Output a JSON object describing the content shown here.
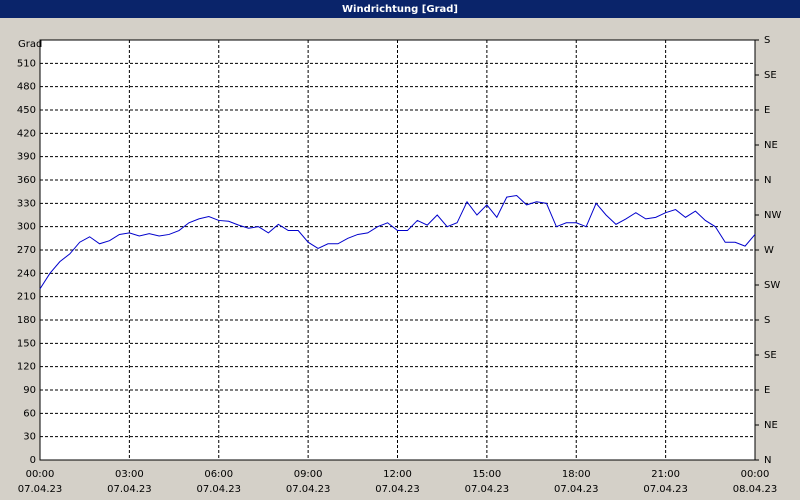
{
  "chart_data": {
    "type": "line",
    "title": "Windrichtung [Grad]",
    "y_label": "Grad",
    "x": [
      0,
      20,
      40,
      60,
      80,
      100,
      120,
      140,
      160,
      180,
      200,
      220,
      240,
      260,
      280,
      300,
      320,
      340,
      360,
      380,
      400,
      420,
      440,
      460,
      480,
      500,
      520,
      540,
      560,
      580,
      600,
      620,
      640,
      660,
      680,
      700,
      720,
      740,
      760,
      780,
      800,
      820,
      840,
      860,
      880,
      900,
      920,
      940,
      960,
      980,
      1000,
      1020,
      1040,
      1060,
      1080,
      1100,
      1120,
      1140,
      1160,
      1180,
      1200,
      1220,
      1240,
      1260,
      1280,
      1300,
      1320,
      1340,
      1360,
      1380,
      1400,
      1420,
      1440
    ],
    "series": [
      {
        "color": "#0000cc",
        "values": [
          220,
          240,
          255,
          265,
          280,
          287,
          278,
          282,
          290,
          292,
          288,
          291,
          288,
          290,
          295,
          305,
          310,
          313,
          308,
          307,
          302,
          298,
          300,
          292,
          303,
          295,
          295,
          280,
          272,
          278,
          278,
          285,
          290,
          292,
          300,
          305,
          295,
          295,
          308,
          302,
          315,
          300,
          305,
          332,
          315,
          328,
          312,
          338,
          340,
          328,
          332,
          330,
          300,
          305,
          305,
          300,
          330,
          315,
          303,
          310,
          318,
          310,
          312,
          318,
          322,
          312,
          320,
          308,
          300,
          280,
          280,
          275,
          290
        ]
      }
    ],
    "xlim": [
      0,
      1440
    ],
    "xticks": [
      {
        "value": 0,
        "label": "00:00",
        "date": "07.04.23"
      },
      {
        "value": 180,
        "label": "03:00",
        "date": "07.04.23"
      },
      {
        "value": 360,
        "label": "06:00",
        "date": "07.04.23"
      },
      {
        "value": 540,
        "label": "09:00",
        "date": "07.04.23"
      },
      {
        "value": 720,
        "label": "12:00",
        "date": "07.04.23"
      },
      {
        "value": 900,
        "label": "15:00",
        "date": "07.04.23"
      },
      {
        "value": 1080,
        "label": "18:00",
        "date": "07.04.23"
      },
      {
        "value": 1260,
        "label": "21:00",
        "date": "07.04.23"
      },
      {
        "value": 1440,
        "label": "00:00",
        "date": "08.04.23"
      }
    ],
    "ylim": [
      0,
      540
    ],
    "yticks": [
      0,
      30,
      60,
      90,
      120,
      150,
      180,
      210,
      240,
      270,
      300,
      330,
      360,
      390,
      420,
      450,
      480,
      510
    ],
    "y2lim": [
      0,
      540
    ],
    "y2ticks": [
      {
        "value": 540,
        "label": "S"
      },
      {
        "value": 495,
        "label": "SE"
      },
      {
        "value": 450,
        "label": "E"
      },
      {
        "value": 405,
        "label": "NE"
      },
      {
        "value": 360,
        "label": "N"
      },
      {
        "value": 315,
        "label": "NW"
      },
      {
        "value": 270,
        "label": "W"
      },
      {
        "value": 225,
        "label": "SW"
      },
      {
        "value": 180,
        "label": "S"
      },
      {
        "value": 135,
        "label": "SE"
      },
      {
        "value": 90,
        "label": "E"
      },
      {
        "value": 45,
        "label": "NE"
      },
      {
        "value": 0,
        "label": "N"
      }
    ],
    "grid": true
  }
}
